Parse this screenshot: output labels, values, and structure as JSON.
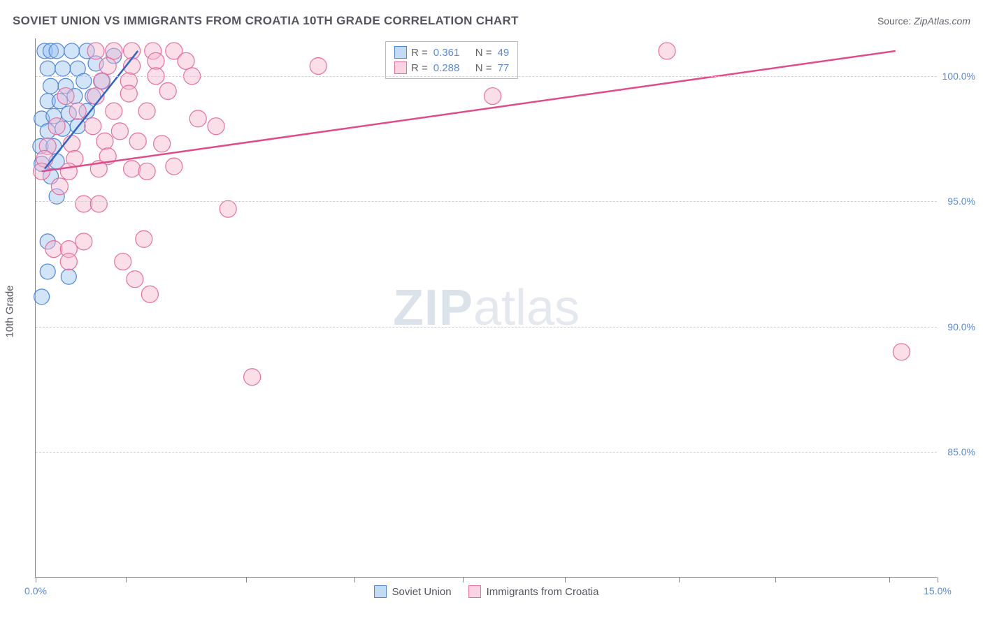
{
  "header": {
    "title": "SOVIET UNION VS IMMIGRANTS FROM CROATIA 10TH GRADE CORRELATION CHART",
    "source_label": "Source:",
    "source_value": "ZipAtlas.com"
  },
  "chart": {
    "type": "scatter",
    "ylabel": "10th Grade",
    "x_domain": [
      0,
      15
    ],
    "y_domain": [
      80,
      101.5
    ],
    "x_ticks": [
      0,
      1.5,
      3.5,
      5.3,
      7.1,
      8.8,
      10.7,
      12.3,
      14.2,
      15
    ],
    "x_tick_labels": {
      "0": "0.0%",
      "15": "15.0%"
    },
    "y_ticks": [
      85,
      90,
      95,
      100
    ],
    "y_tick_labels": {
      "85": "85.0%",
      "90": "90.0%",
      "95": "95.0%",
      "100": "100.0%"
    },
    "background_color": "#ffffff",
    "grid_color": "#d0d0d0",
    "series": [
      {
        "key": "soviet",
        "label": "Soviet Union",
        "fill": "#9cc3f0",
        "stroke": "#4f86d9",
        "fill_opacity": 0.45,
        "line_color": "#2f63c9",
        "marker_radius": 11,
        "R": "0.361",
        "N": "49",
        "trend": {
          "x1": 0.15,
          "y1": 96.3,
          "x2": 1.7,
          "y2": 101.0
        },
        "points": [
          [
            0.15,
            101.0
          ],
          [
            0.25,
            101.0
          ],
          [
            0.35,
            101.0
          ],
          [
            0.6,
            101.0
          ],
          [
            0.85,
            101.0
          ],
          [
            0.2,
            100.3
          ],
          [
            0.45,
            100.3
          ],
          [
            0.7,
            100.3
          ],
          [
            1.0,
            100.5
          ],
          [
            1.3,
            100.8
          ],
          [
            0.25,
            99.6
          ],
          [
            0.5,
            99.6
          ],
          [
            0.8,
            99.8
          ],
          [
            1.1,
            99.8
          ],
          [
            0.2,
            99.0
          ],
          [
            0.4,
            99.0
          ],
          [
            0.65,
            99.2
          ],
          [
            0.95,
            99.2
          ],
          [
            0.1,
            98.3
          ],
          [
            0.3,
            98.4
          ],
          [
            0.55,
            98.5
          ],
          [
            0.85,
            98.6
          ],
          [
            0.2,
            97.8
          ],
          [
            0.45,
            97.9
          ],
          [
            0.7,
            98.0
          ],
          [
            0.08,
            97.2
          ],
          [
            0.3,
            97.2
          ],
          [
            0.1,
            96.5
          ],
          [
            0.35,
            96.6
          ],
          [
            0.25,
            96.0
          ],
          [
            0.35,
            95.2
          ],
          [
            0.2,
            93.4
          ],
          [
            0.2,
            92.2
          ],
          [
            0.55,
            92.0
          ],
          [
            0.1,
            91.2
          ]
        ]
      },
      {
        "key": "croatia",
        "label": "Immigrants from Croatia",
        "fill": "#f5b8cf",
        "stroke": "#e66fa0",
        "fill_opacity": 0.45,
        "line_color": "#e14b8a",
        "marker_radius": 12,
        "R": "0.288",
        "N": "77",
        "trend": {
          "x1": 0.1,
          "y1": 96.2,
          "x2": 14.3,
          "y2": 101.0
        },
        "points": [
          [
            1.0,
            101.0
          ],
          [
            1.3,
            101.0
          ],
          [
            1.6,
            101.0
          ],
          [
            1.95,
            101.0
          ],
          [
            2.3,
            101.0
          ],
          [
            1.2,
            100.4
          ],
          [
            1.6,
            100.4
          ],
          [
            2.0,
            100.6
          ],
          [
            2.5,
            100.6
          ],
          [
            4.7,
            100.4
          ],
          [
            1.1,
            99.8
          ],
          [
            1.55,
            99.8
          ],
          [
            2.0,
            100.0
          ],
          [
            2.6,
            100.0
          ],
          [
            0.5,
            99.2
          ],
          [
            1.0,
            99.2
          ],
          [
            1.55,
            99.3
          ],
          [
            2.2,
            99.4
          ],
          [
            7.6,
            99.2
          ],
          [
            0.7,
            98.6
          ],
          [
            1.3,
            98.6
          ],
          [
            1.85,
            98.6
          ],
          [
            2.7,
            98.3
          ],
          [
            3.0,
            98.0
          ],
          [
            0.35,
            98.0
          ],
          [
            0.95,
            98.0
          ],
          [
            1.4,
            97.8
          ],
          [
            0.2,
            97.2
          ],
          [
            0.6,
            97.3
          ],
          [
            1.15,
            97.4
          ],
          [
            1.7,
            97.4
          ],
          [
            2.1,
            97.3
          ],
          [
            0.15,
            96.7
          ],
          [
            0.65,
            96.7
          ],
          [
            1.2,
            96.8
          ],
          [
            0.1,
            96.2
          ],
          [
            0.55,
            96.2
          ],
          [
            1.05,
            96.3
          ],
          [
            1.6,
            96.3
          ],
          [
            1.85,
            96.2
          ],
          [
            2.3,
            96.4
          ],
          [
            0.4,
            95.6
          ],
          [
            0.8,
            94.9
          ],
          [
            1.05,
            94.9
          ],
          [
            3.2,
            94.7
          ],
          [
            0.8,
            93.4
          ],
          [
            1.8,
            93.5
          ],
          [
            0.3,
            93.1
          ],
          [
            0.55,
            93.1
          ],
          [
            0.55,
            92.6
          ],
          [
            1.45,
            92.6
          ],
          [
            1.65,
            91.9
          ],
          [
            1.9,
            91.3
          ],
          [
            10.5,
            101.0
          ],
          [
            14.4,
            89.0
          ],
          [
            3.6,
            88.0
          ]
        ]
      }
    ],
    "watermark": {
      "part1": "ZIP",
      "part2": "atlas"
    },
    "stat_legend": {
      "r_label": "R =",
      "n_label": "N ="
    },
    "bottom_legend_labels": [
      "Soviet Union",
      "Immigrants from Croatia"
    ]
  }
}
